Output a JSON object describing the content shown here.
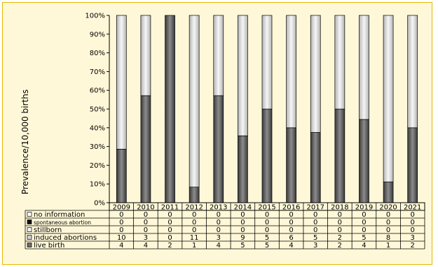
{
  "chart_data": {
    "type": "bar",
    "stacked": "percent",
    "ylabel": "Prevalence/10,000 births",
    "xlabel": "",
    "title": "",
    "ylim": [
      0,
      100
    ],
    "y_ticks": [
      "0%",
      "10%",
      "20%",
      "30%",
      "40%",
      "50%",
      "60%",
      "70%",
      "80%",
      "90%",
      "100%"
    ],
    "grid": false,
    "legend": "data-table",
    "categories": [
      "2009",
      "2010",
      "2011",
      "2012",
      "2013",
      "2014",
      "2015",
      "2016",
      "2017",
      "2018",
      "2019",
      "2020",
      "2021"
    ],
    "series": [
      {
        "name": "no information",
        "fill": "#ffffff",
        "values": [
          "0",
          "0",
          "0",
          "0",
          "0",
          "0",
          "0",
          "0",
          "0",
          "0",
          "0",
          "0",
          "0"
        ]
      },
      {
        "name": "spontaneous abortion",
        "fill": "#111111",
        "values": [
          "0",
          "0",
          "0",
          "0",
          "0",
          "0",
          "0",
          "0",
          "0",
          "0",
          "0",
          "0",
          "0"
        ]
      },
      {
        "name": "stillborn",
        "fill": "#f4f4f4",
        "values": [
          "0",
          "0",
          "0",
          "0",
          "0",
          "0",
          "0",
          "0",
          "0",
          "0",
          "0",
          "0",
          "0"
        ]
      },
      {
        "name": "induced abortions",
        "fill": "#d2d2d2",
        "values": [
          "10",
          "3",
          "0",
          "11",
          "3",
          "9",
          "5",
          "6",
          "5",
          "2",
          "5",
          "8",
          "3"
        ]
      },
      {
        "name": "live birth",
        "fill": "#6e6e6e",
        "values": [
          "4",
          "4",
          "2",
          "1",
          "4",
          "5",
          "5",
          "4",
          "3",
          "2",
          "4",
          "1",
          "2"
        ]
      }
    ]
  }
}
